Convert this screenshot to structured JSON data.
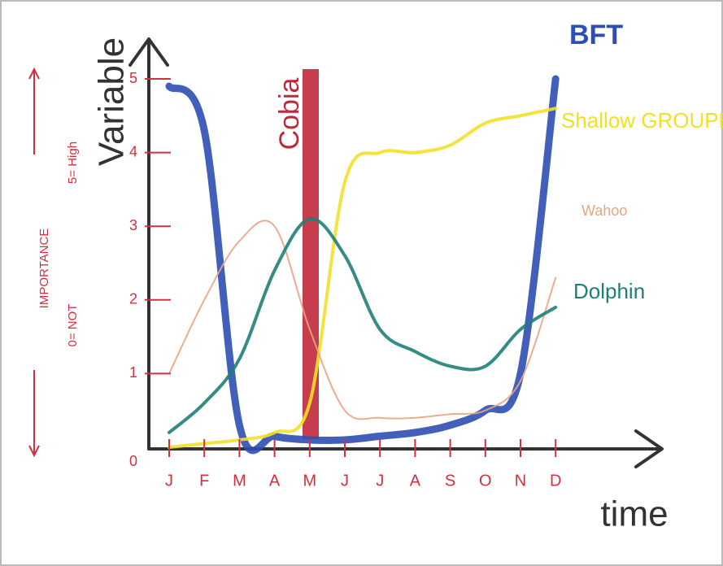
{
  "chart_data": {
    "type": "line",
    "y_label": "Variable",
    "x_label": "time",
    "annotations": [
      "Cobia",
      "IMPORTANCE",
      "0= NOT",
      "5= High"
    ],
    "categories": [
      "J",
      "F",
      "M",
      "A",
      "M",
      "J",
      "J",
      "A",
      "S",
      "O",
      "N",
      "D"
    ],
    "ylim": [
      0,
      5
    ],
    "yticks": [
      0,
      1,
      2,
      3,
      4,
      5
    ],
    "series": [
      {
        "name": "BFT",
        "color": "#2d4fb3",
        "values": [
          4.9,
          4.3,
          0.3,
          0.15,
          0.1,
          0.1,
          0.15,
          0.2,
          0.3,
          0.5,
          1.0,
          5.0
        ]
      },
      {
        "name": "Shallow GROUPER",
        "color": "#f2e027",
        "values": [
          0,
          0.05,
          0.1,
          0.2,
          0.6,
          3.6,
          4.0,
          4.0,
          4.1,
          4.4,
          4.5,
          4.6
        ]
      },
      {
        "name": "Wahoo",
        "color": "#e9a483",
        "values": [
          1.0,
          2.0,
          2.8,
          3.0,
          1.6,
          0.5,
          0.4,
          0.4,
          0.45,
          0.5,
          0.9,
          2.3
        ]
      },
      {
        "name": "Dolphin",
        "color": "#1f7f78",
        "values": [
          0.2,
          0.6,
          1.2,
          2.4,
          3.1,
          2.6,
          1.6,
          1.3,
          1.1,
          1.1,
          1.6,
          1.9
        ]
      }
    ]
  }
}
